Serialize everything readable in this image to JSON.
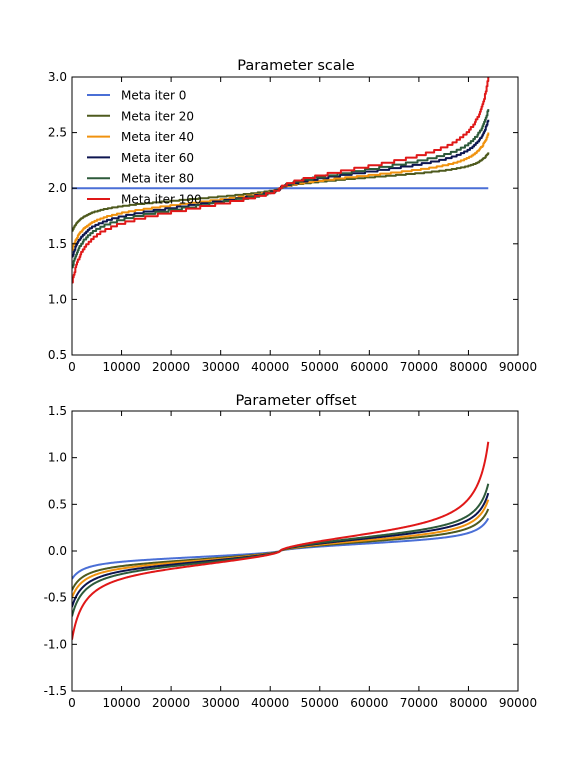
{
  "chart_data": [
    {
      "type": "line",
      "title": "Parameter scale",
      "xlabel": "",
      "ylabel": "",
      "xlim": [
        0,
        90000
      ],
      "ylim": [
        0.5,
        3.0
      ],
      "xticks": [
        "0",
        "10000",
        "20000",
        "30000",
        "40000",
        "50000",
        "60000",
        "70000",
        "80000",
        "90000"
      ],
      "yticks": [
        "0.5",
        "1.0",
        "1.5",
        "2.0",
        "2.5",
        "3.0"
      ],
      "grid": false,
      "legend": "upper-left",
      "n_points": 84000,
      "series": [
        {
          "name": "Meta iter 0",
          "color": "#4a6fd6",
          "start": 2.0,
          "mid": 2.0,
          "end": 2.0,
          "dev_low": 0.0,
          "dev_high": 0.0
        },
        {
          "name": "Meta iter 20",
          "color": "#4e5a1e",
          "start": 1.62,
          "mid": 2.0,
          "end": 2.32,
          "dev_low": 0.15,
          "dev_high": 0.15
        },
        {
          "name": "Meta iter 40",
          "color": "#f0920f",
          "start": 1.45,
          "mid": 2.0,
          "end": 2.5,
          "dev_low": 0.2,
          "dev_high": 0.17
        },
        {
          "name": "Meta iter 60",
          "color": "#0d1550",
          "start": 1.38,
          "mid": 2.0,
          "end": 2.62,
          "dev_low": 0.23,
          "dev_high": 0.22
        },
        {
          "name": "Meta iter 80",
          "color": "#2d5a3a",
          "start": 1.28,
          "mid": 2.0,
          "end": 2.72,
          "dev_low": 0.25,
          "dev_high": 0.25
        },
        {
          "name": "Meta iter 100",
          "color": "#e01818",
          "start": 1.15,
          "mid": 2.0,
          "end": 3.0,
          "dev_low": 0.27,
          "dev_high": 0.28
        }
      ]
    },
    {
      "type": "line",
      "title": "Parameter offset",
      "xlabel": "",
      "ylabel": "",
      "xlim": [
        0,
        90000
      ],
      "ylim": [
        -1.5,
        1.5
      ],
      "xticks": [
        "0",
        "10000",
        "20000",
        "30000",
        "40000",
        "50000",
        "60000",
        "70000",
        "80000",
        "90000"
      ],
      "yticks": [
        "-1.5",
        "-1.0",
        "-0.5",
        "0.0",
        "0.5",
        "1.0",
        "1.5"
      ],
      "grid": false,
      "legend": "none",
      "n_points": 84000,
      "series": [
        {
          "color": "#4a6fd6",
          "start": -0.3,
          "mid": 0.0,
          "end": 0.35,
          "dev_low": 0.1,
          "dev_high": 0.12
        },
        {
          "color": "#4e5a1e",
          "start": -0.42,
          "mid": 0.0,
          "end": 0.45,
          "dev_low": 0.14,
          "dev_high": 0.15
        },
        {
          "color": "#f0920f",
          "start": -0.5,
          "mid": 0.0,
          "end": 0.55,
          "dev_low": 0.16,
          "dev_high": 0.17
        },
        {
          "color": "#0d1550",
          "start": -0.6,
          "mid": 0.0,
          "end": 0.62,
          "dev_low": 0.18,
          "dev_high": 0.2
        },
        {
          "color": "#2d5a3a",
          "start": -0.7,
          "mid": 0.0,
          "end": 0.72,
          "dev_low": 0.2,
          "dev_high": 0.22
        },
        {
          "color": "#e01818",
          "start": -0.95,
          "mid": 0.0,
          "end": 1.17,
          "dev_low": 0.22,
          "dev_high": 0.25
        }
      ]
    }
  ]
}
